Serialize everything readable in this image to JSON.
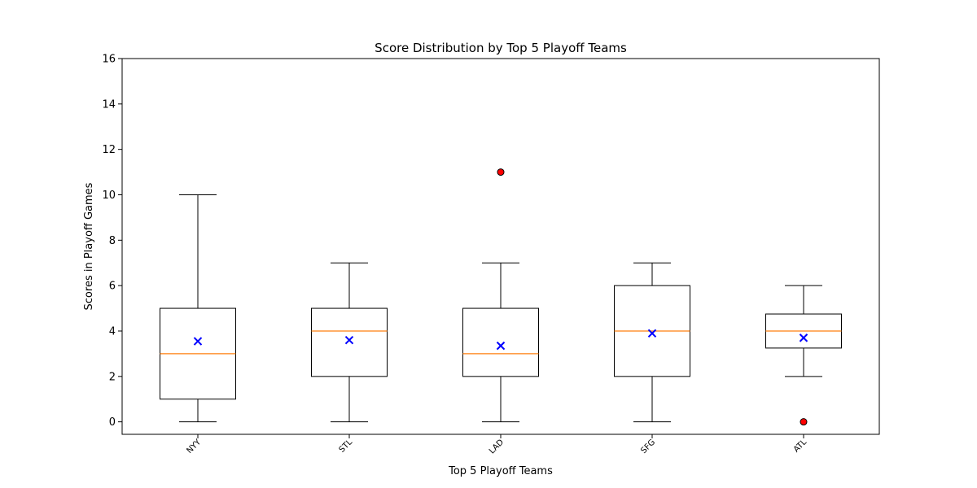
{
  "chart_data": {
    "type": "box",
    "title": "Score Distribution by Top 5 Playoff Teams",
    "xlabel": "Top 5 Playoff Teams",
    "ylabel": "Scores in Playoff Games",
    "ylim": [
      -0.55,
      16
    ],
    "yticks": [
      0,
      2,
      4,
      6,
      8,
      10,
      12,
      14,
      16
    ],
    "categories": [
      "NYY",
      "STL",
      "LAD",
      "SFG",
      "ATL"
    ],
    "boxes": [
      {
        "label": "NYY",
        "whisker_low": 0,
        "q1": 1,
        "median": 3,
        "q3": 5,
        "whisker_high": 10,
        "mean": 3.55,
        "outliers": []
      },
      {
        "label": "STL",
        "whisker_low": 0,
        "q1": 2,
        "median": 4,
        "q3": 5,
        "whisker_high": 7,
        "mean": 3.6,
        "outliers": []
      },
      {
        "label": "LAD",
        "whisker_low": 0,
        "q1": 2,
        "median": 3,
        "q3": 5,
        "whisker_high": 7,
        "mean": 3.35,
        "outliers": [
          11
        ]
      },
      {
        "label": "SFG",
        "whisker_low": 0,
        "q1": 2,
        "median": 4,
        "q3": 6,
        "whisker_high": 7,
        "mean": 3.9,
        "outliers": []
      },
      {
        "label": "ATL",
        "whisker_low": 2,
        "q1": 3.25,
        "median": 4,
        "q3": 4.75,
        "whisker_high": 6,
        "mean": 3.7,
        "outliers": [
          0
        ]
      }
    ],
    "colors": {
      "box": "#000000",
      "median": "#ff7f0e",
      "mean": "#0000ff",
      "outlier_fill": "#ff0000",
      "outlier_edge": "#000000"
    },
    "grid": false
  }
}
